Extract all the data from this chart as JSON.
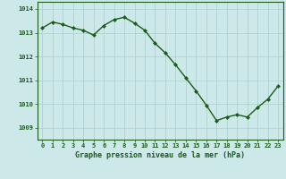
{
  "x": [
    0,
    1,
    2,
    3,
    4,
    5,
    6,
    7,
    8,
    9,
    10,
    11,
    12,
    13,
    14,
    15,
    16,
    17,
    18,
    19,
    20,
    21,
    22,
    23
  ],
  "y": [
    1013.2,
    1013.45,
    1013.35,
    1013.2,
    1013.1,
    1012.9,
    1013.3,
    1013.55,
    1013.65,
    1013.4,
    1013.1,
    1012.55,
    1012.15,
    1011.65,
    1011.1,
    1010.55,
    1009.95,
    1009.3,
    1009.45,
    1009.55,
    1009.45,
    1009.85,
    1010.2,
    1010.75
  ],
  "line_color": "#1a5c1a",
  "marker": "D",
  "marker_size": 2,
  "bg_color": "#cce8e8",
  "grid_color": "#aacece",
  "xlabel": "Graphe pression niveau de la mer (hPa)",
  "xlabel_fontsize": 6.0,
  "ylim": [
    1008.5,
    1014.3
  ],
  "yticks": [
    1009,
    1010,
    1011,
    1012,
    1013,
    1014
  ],
  "xticks": [
    0,
    1,
    2,
    3,
    4,
    5,
    6,
    7,
    8,
    9,
    10,
    11,
    12,
    13,
    14,
    15,
    16,
    17,
    18,
    19,
    20,
    21,
    22,
    23
  ],
  "tick_fontsize": 5.0,
  "axis_color": "#1a5c1a",
  "line_width": 1.0
}
